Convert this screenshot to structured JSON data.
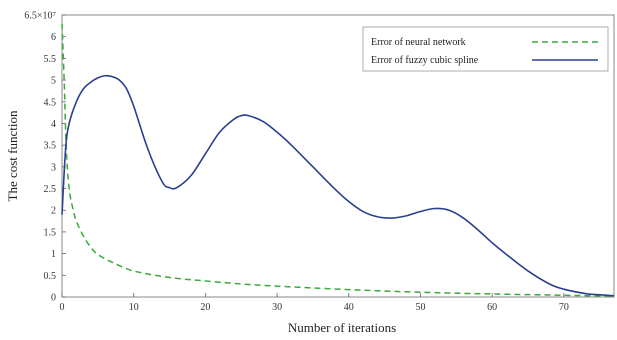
{
  "chart_data": {
    "type": "line",
    "title": "",
    "xlabel": "Number of iterations",
    "ylabel": "The cost function",
    "xlim": [
      0,
      77
    ],
    "ylim": [
      0,
      6.5
    ],
    "x_ticks": [
      0,
      10,
      20,
      30,
      40,
      50,
      60,
      70
    ],
    "x_tick_labels": [
      "0",
      "10",
      "20",
      "30",
      "40",
      "50",
      "60",
      "70"
    ],
    "y_ticks": [
      0,
      0.5,
      1,
      1.5,
      2,
      2.5,
      3,
      3.5,
      4,
      4.5,
      5,
      5.5,
      6,
      6.5
    ],
    "y_tick_labels": [
      "0",
      "0.5",
      "1",
      "1.5",
      "2",
      "2.5",
      "3",
      "3.5",
      "4",
      "4.5",
      "5",
      "5.5",
      "6",
      "6.5×10⁷"
    ],
    "grid": false,
    "legend_position": "top-right",
    "series": [
      {
        "name": "Error of neural network",
        "style": "dashed",
        "color": "#3aaa3a",
        "x": [
          0,
          0.3,
          0.6,
          1,
          1.5,
          2,
          3,
          4,
          5,
          7,
          10,
          15,
          20,
          25,
          30,
          40,
          50,
          60,
          70,
          77
        ],
        "y": [
          6.3,
          5.0,
          3.4,
          2.5,
          2.05,
          1.75,
          1.4,
          1.15,
          0.98,
          0.8,
          0.6,
          0.45,
          0.37,
          0.3,
          0.25,
          0.17,
          0.11,
          0.07,
          0.04,
          0.02
        ]
      },
      {
        "name": "Error of fuzzy cubic spline",
        "style": "solid",
        "color": "#2b3f8f",
        "x": [
          0,
          0.5,
          1,
          2,
          3,
          4,
          5,
          6,
          7,
          8,
          9,
          10,
          12,
          14,
          15,
          16,
          18,
          20,
          22,
          24,
          25,
          26,
          28,
          30,
          32,
          35,
          38,
          40,
          42,
          44,
          46,
          48,
          50,
          52,
          54,
          56,
          58,
          60,
          62,
          65,
          68,
          70,
          73,
          75,
          77
        ],
        "y": [
          1.9,
          3.4,
          4.0,
          4.5,
          4.8,
          4.95,
          5.05,
          5.1,
          5.08,
          5.0,
          4.8,
          4.4,
          3.4,
          2.65,
          2.52,
          2.52,
          2.8,
          3.3,
          3.8,
          4.1,
          4.18,
          4.18,
          4.05,
          3.8,
          3.5,
          3.0,
          2.5,
          2.2,
          1.97,
          1.85,
          1.82,
          1.87,
          1.97,
          2.04,
          2.0,
          1.82,
          1.55,
          1.25,
          0.98,
          0.6,
          0.3,
          0.18,
          0.08,
          0.05,
          0.03
        ]
      }
    ]
  }
}
